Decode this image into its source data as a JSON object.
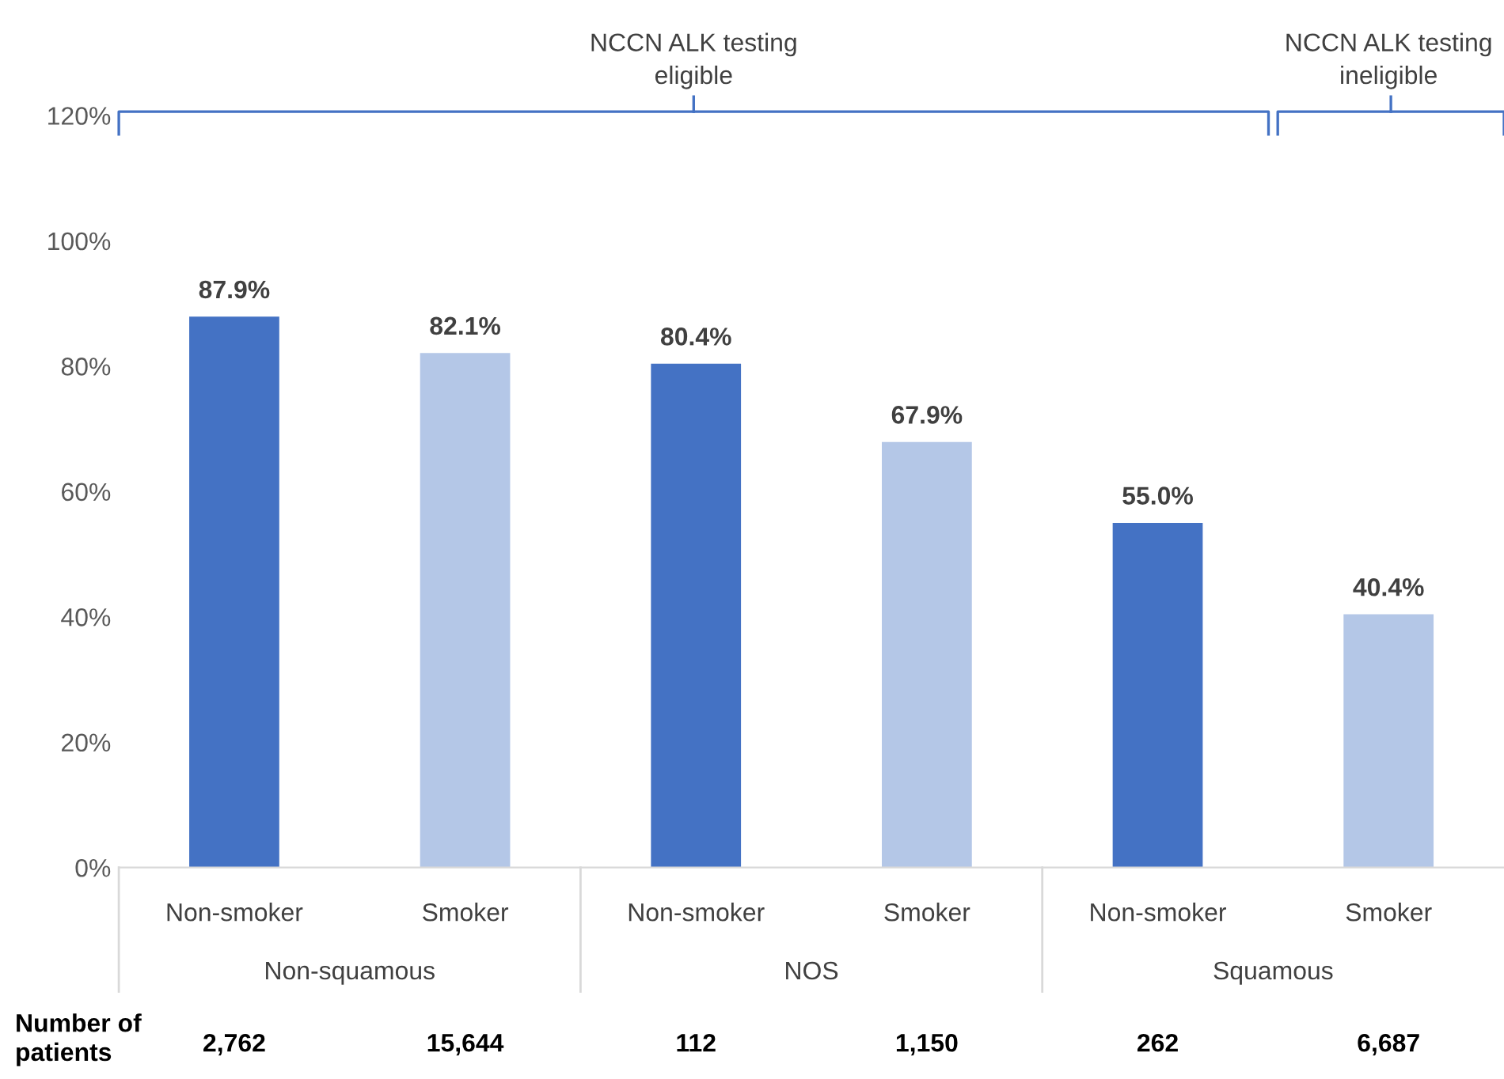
{
  "chart_data": {
    "type": "bar",
    "categories": [
      "Non-smoker",
      "Smoker",
      "Non-smoker",
      "Smoker",
      "Non-smoker",
      "Smoker"
    ],
    "values": [
      87.9,
      82.1,
      80.4,
      67.9,
      55.0,
      40.4
    ],
    "colors": [
      "#4472c4",
      "#b4c7e7",
      "#4472c4",
      "#b4c7e7",
      "#4472c4",
      "#b4c7e7"
    ],
    "value_labels": [
      "87.9%",
      "82.1%",
      "80.4%",
      "67.9%",
      "55.0%",
      "40.4%"
    ],
    "ylim": [
      0,
      120
    ],
    "yticks": [
      {
        "value": 0,
        "label": "0%"
      },
      {
        "value": 20,
        "label": "20%"
      },
      {
        "value": 40,
        "label": "40%"
      },
      {
        "value": 60,
        "label": "60%"
      },
      {
        "value": 80,
        "label": "80%"
      },
      {
        "value": 100,
        "label": "100%"
      },
      {
        "value": 120,
        "label": "120%"
      }
    ],
    "grid": false,
    "legend": false,
    "annotations": [
      "NCCN ALK testing\neligible",
      "NCCN ALK testing\nineligible",
      "Non-squamous",
      "NOS",
      "Squamous",
      "Number of\npatients",
      "2,762",
      "15,644",
      "112",
      "1,150",
      "262",
      "6,687"
    ]
  }
}
